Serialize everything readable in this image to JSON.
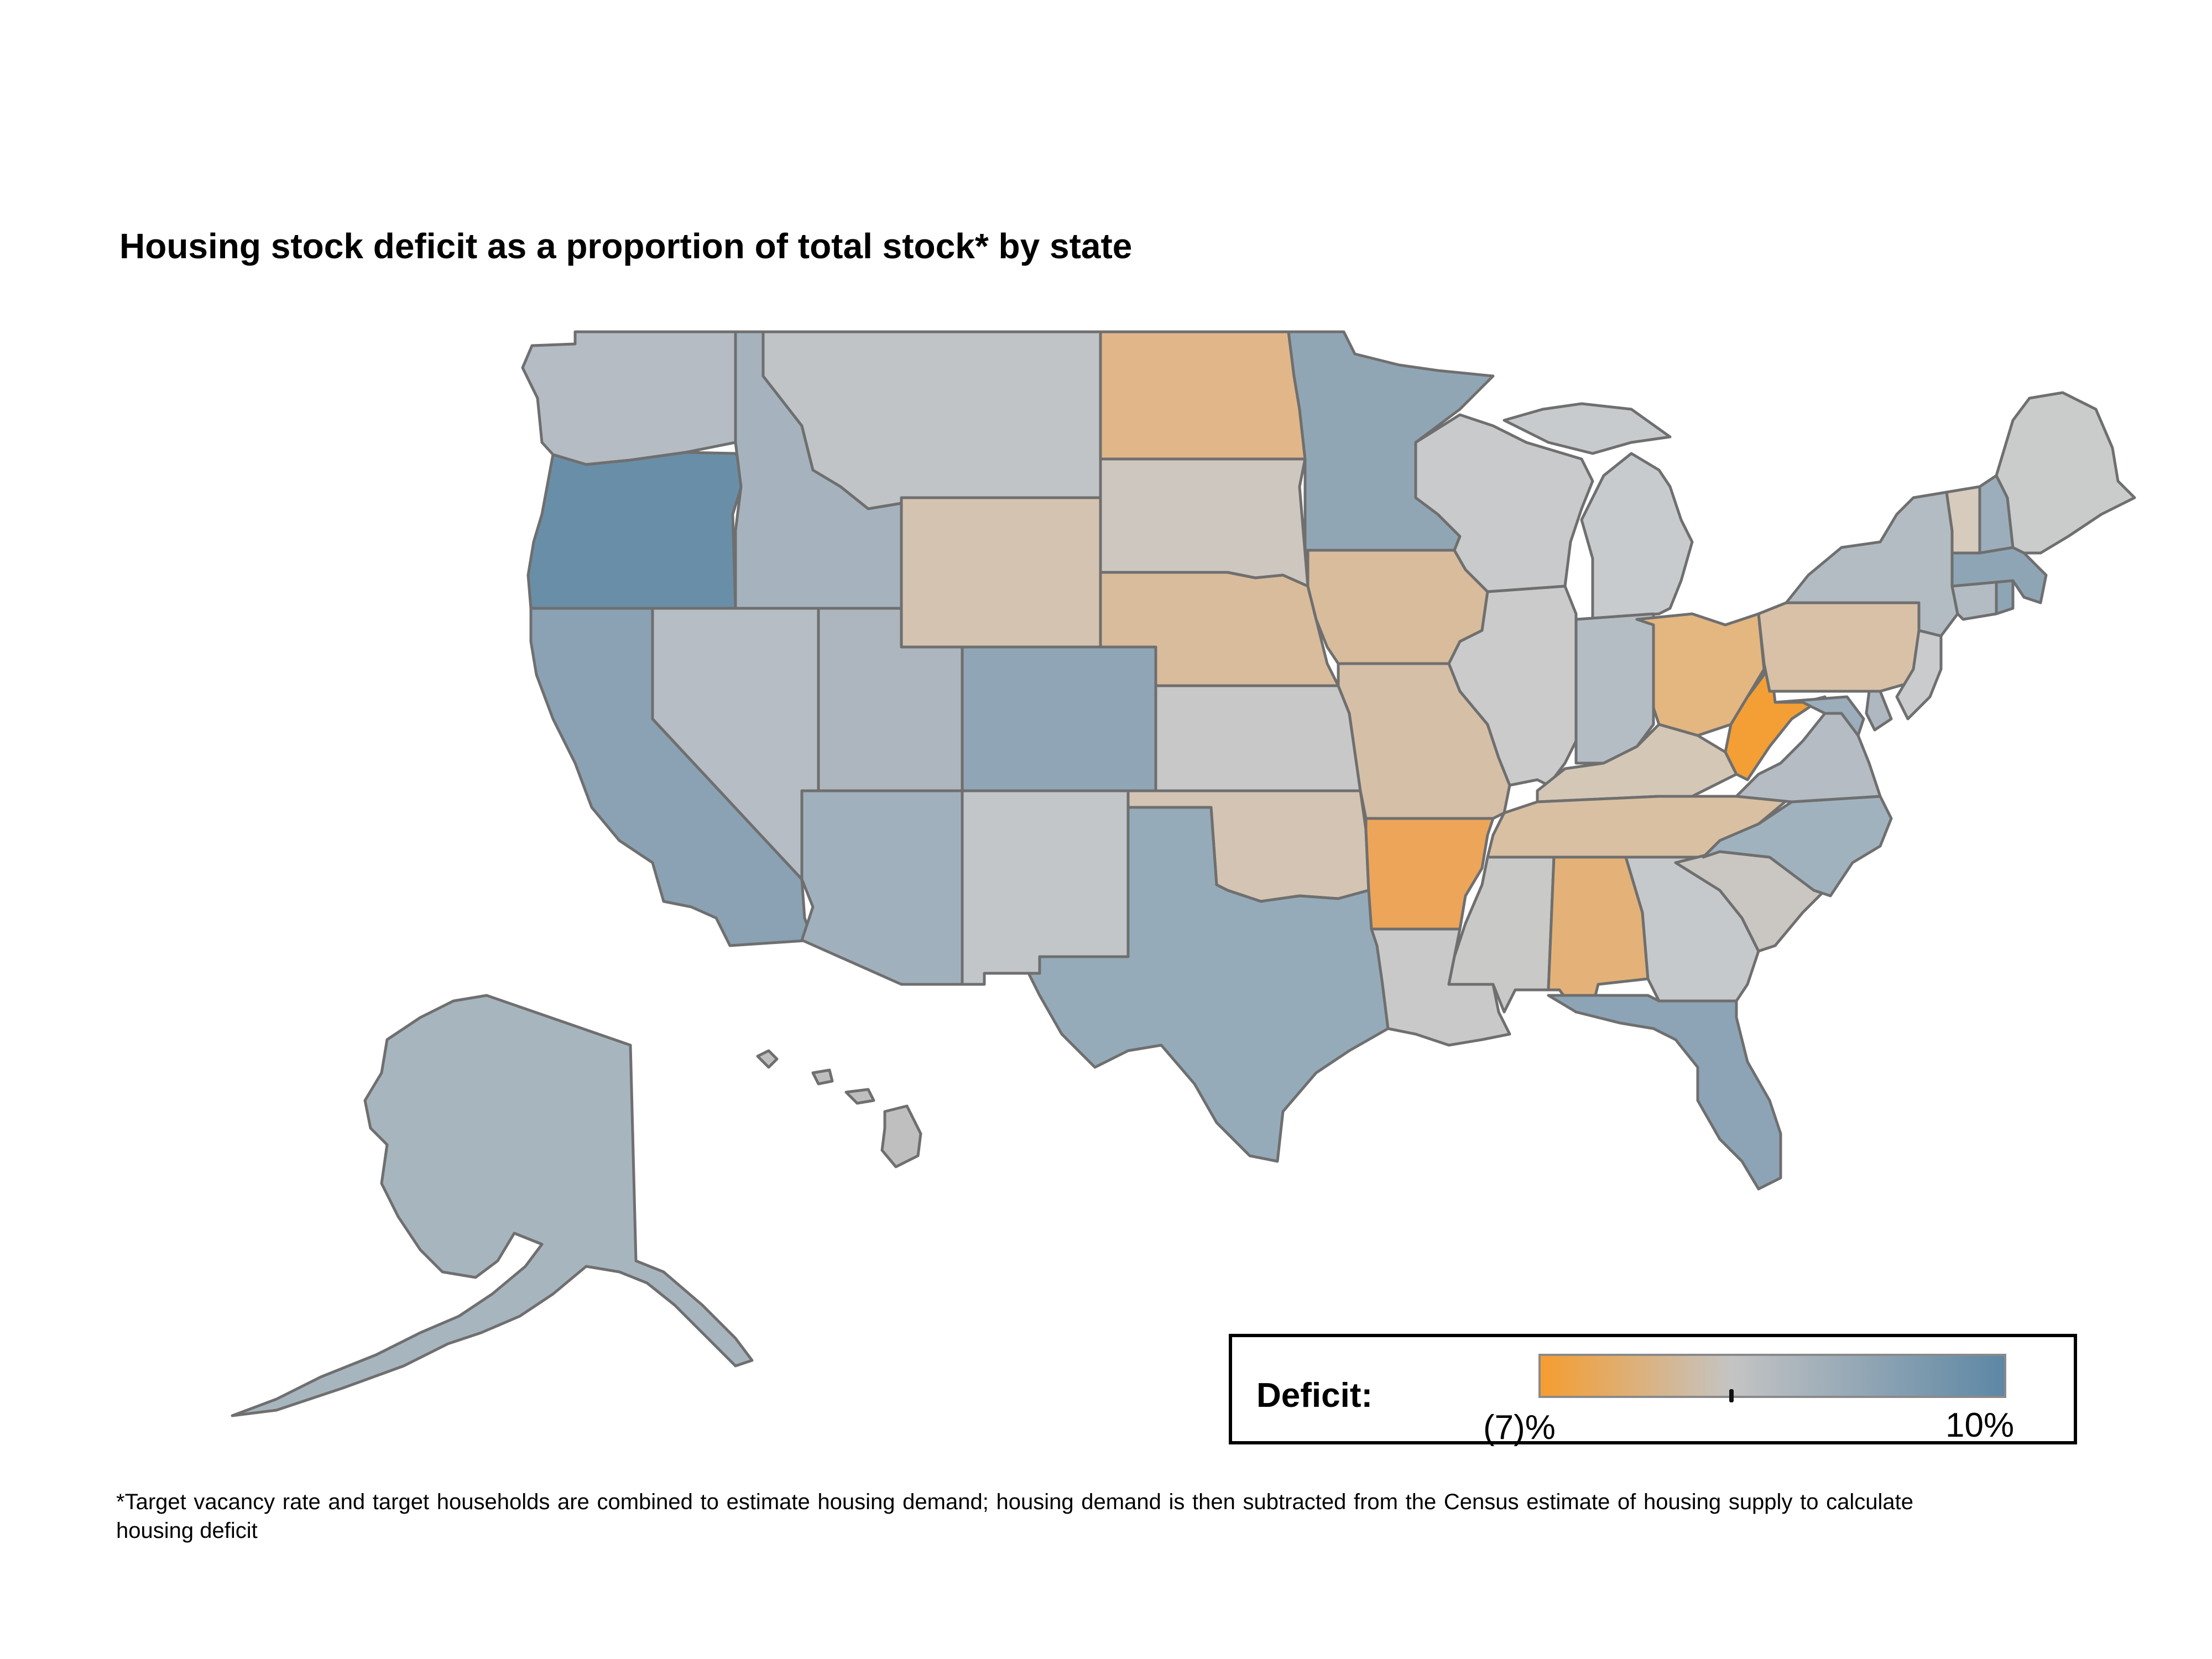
{
  "title": "Housing stock deficit as a proportion of total stock* by state",
  "legend": {
    "label": "Deficit:",
    "min_label": "(7)%",
    "max_label": "10%",
    "min_value": -7,
    "max_value": 10,
    "zero_marker_value": 0,
    "color_low": "#f59d30",
    "color_mid": "#c4c4c4",
    "color_high": "#5d87a5"
  },
  "footnote": "*Target vacancy rate and target households are combined to estimate housing demand; housing demand is then subtracted from the Census estimate of housing supply to calculate housing deficit",
  "chart_data": {
    "type": "choropleth",
    "region": "United States",
    "units": "percent of total housing stock",
    "scale": {
      "min": -7,
      "max": 10
    },
    "states": [
      {
        "state": "Washington",
        "fill": "#b5bcc3"
      },
      {
        "state": "Oregon",
        "fill": "#698ea8"
      },
      {
        "state": "California",
        "fill": "#8aa2b3"
      },
      {
        "state": "Idaho",
        "fill": "#a6b3bf"
      },
      {
        "state": "Nevada",
        "fill": "#b6bdc4"
      },
      {
        "state": "Montana",
        "fill": "#c0c4c7"
      },
      {
        "state": "Wyoming",
        "fill": "#d4c3b0"
      },
      {
        "state": "Utah",
        "fill": "#adb6be"
      },
      {
        "state": "Arizona",
        "fill": "#a1b0bd"
      },
      {
        "state": "Colorado",
        "fill": "#90a6b6"
      },
      {
        "state": "New Mexico",
        "fill": "#c2c6c8"
      },
      {
        "state": "North Dakota",
        "fill": "#e1b789"
      },
      {
        "state": "South Dakota",
        "fill": "#cdc7c0"
      },
      {
        "state": "Nebraska",
        "fill": "#d9bc9c"
      },
      {
        "state": "Kansas",
        "fill": "#c8c8c8"
      },
      {
        "state": "Oklahoma",
        "fill": "#d3c4b3"
      },
      {
        "state": "Texas",
        "fill": "#95abb9"
      },
      {
        "state": "Minnesota",
        "fill": "#91a6b5"
      },
      {
        "state": "Iowa",
        "fill": "#d8bc9b"
      },
      {
        "state": "Missouri",
        "fill": "#d5bfa6"
      },
      {
        "state": "Arkansas",
        "fill": "#eda55a"
      },
      {
        "state": "Louisiana",
        "fill": "#c9c9c9"
      },
      {
        "state": "Wisconsin",
        "fill": "#c9cacb"
      },
      {
        "state": "Illinois",
        "fill": "#cacbca"
      },
      {
        "state": "Michigan",
        "fill": "#c8cbcd"
      },
      {
        "state": "Indiana",
        "fill": "#b5bdc4"
      },
      {
        "state": "Ohio",
        "fill": "#e4b680"
      },
      {
        "state": "Kentucky",
        "fill": "#d4c7b6"
      },
      {
        "state": "Tennessee",
        "fill": "#d9c0a2"
      },
      {
        "state": "Mississippi",
        "fill": "#c9c9c8"
      },
      {
        "state": "Alabama",
        "fill": "#e4b278"
      },
      {
        "state": "Georgia",
        "fill": "#c6c9cb"
      },
      {
        "state": "Florida",
        "fill": "#8ca4b5"
      },
      {
        "state": "South Carolina",
        "fill": "#cac6c2"
      },
      {
        "state": "North Carolina",
        "fill": "#a1b2bf"
      },
      {
        "state": "Virginia",
        "fill": "#b5bcc3"
      },
      {
        "state": "West Virginia",
        "fill": "#f39f36"
      },
      {
        "state": "Maryland",
        "fill": "#9cadbb"
      },
      {
        "state": "Delaware",
        "fill": "#afb8c0"
      },
      {
        "state": "Pennsylvania",
        "fill": "#d8c1a7"
      },
      {
        "state": "New Jersey",
        "fill": "#c9cbcc"
      },
      {
        "state": "New York",
        "fill": "#b3bcc3"
      },
      {
        "state": "Connecticut",
        "fill": "#b3bcc3"
      },
      {
        "state": "Rhode Island",
        "fill": "#8ea5b6"
      },
      {
        "state": "Massachusetts",
        "fill": "#8ea5b6"
      },
      {
        "state": "Vermont",
        "fill": "#d6cbbd"
      },
      {
        "state": "New Hampshire",
        "fill": "#9caebc"
      },
      {
        "state": "Maine",
        "fill": "#cacccc"
      },
      {
        "state": "Alaska",
        "fill": "#a7b5be"
      },
      {
        "state": "Hawaii",
        "fill": "#bfbfbf"
      }
    ]
  }
}
